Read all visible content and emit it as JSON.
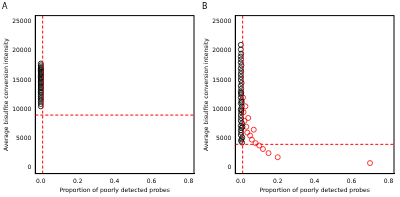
{
  "chart_data": [
    {
      "type": "scatter",
      "title": "A",
      "x_label": "Proportion of poorly detected probes",
      "y_label": "Average bisulfite conversion intensity",
      "xlim": [
        -0.03,
        0.83
      ],
      "xticks": [
        {
          "value": 0,
          "label": "0.0"
        },
        {
          "value": 0.2,
          "label": "0.2"
        },
        {
          "value": 0.4,
          "label": "0.4"
        },
        {
          "value": 0.6,
          "label": "0.6"
        },
        {
          "value": 0.8,
          "label": "0.8"
        }
      ],
      "ylim": [
        -1000,
        26000
      ],
      "yticks": [
        0,
        5000,
        10000,
        15000,
        20000,
        25000
      ],
      "grid": false,
      "reference_lines": {
        "x": 0.01,
        "y": 9000,
        "color": "#ff0000",
        "line_style": "dashed"
      },
      "series": [
        {
          "color": "#000000",
          "marker": "open_circle",
          "x": [
            0,
            0,
            0,
            0,
            0,
            0,
            0,
            0,
            0,
            0,
            0,
            0,
            0,
            0,
            0,
            0,
            0,
            0,
            0,
            0,
            0,
            0,
            0,
            0,
            0,
            0,
            0,
            0,
            0,
            0
          ],
          "values": [
            10500,
            10900,
            11300,
            11600,
            11900,
            12200,
            12500,
            12800,
            13000,
            13300,
            13600,
            13800,
            14000,
            14300,
            14500,
            14700,
            15000,
            15200,
            15400,
            15600,
            15800,
            16000,
            16200,
            16400,
            16600,
            16800,
            17000,
            17200,
            17500,
            17800
          ]
        }
      ]
    },
    {
      "type": "scatter",
      "title": "B",
      "x_label": "Proportion of poorly detected probes",
      "y_label": "Average bisulfite conversion intensity",
      "xlim": [
        -0.03,
        0.83
      ],
      "xticks": [
        {
          "value": 0,
          "label": "0.0"
        },
        {
          "value": 0.2,
          "label": "0.2"
        },
        {
          "value": 0.4,
          "label": "0.4"
        },
        {
          "value": 0.6,
          "label": "0.6"
        },
        {
          "value": 0.8,
          "label": "0.8"
        }
      ],
      "ylim": [
        -1000,
        26000
      ],
      "yticks": [
        0,
        5000,
        10000,
        15000,
        20000,
        25000
      ],
      "grid": false,
      "reference_lines": {
        "x": 0.01,
        "y": 4000,
        "color": "#ff0000",
        "line_style": "dashed"
      },
      "series": [
        {
          "color": "#000000",
          "marker": "open_circle",
          "x": [
            0,
            0,
            0.002,
            0,
            0.001,
            0,
            0.003,
            0,
            0.002,
            0,
            0.001,
            0,
            0.004,
            0,
            0.002,
            0,
            0.001,
            0,
            0.003,
            0,
            0.005,
            0,
            0.002,
            0,
            0.001,
            0,
            0.006,
            0,
            0.003,
            0,
            0.002,
            0,
            0.008,
            0.004,
            0.001,
            0.007,
            0.003,
            0.009,
            0.005,
            0.002
          ],
          "values": [
            21000,
            20200,
            19500,
            19000,
            18500,
            18000,
            17500,
            17000,
            16500,
            16000,
            15500,
            15000,
            14500,
            14000,
            13500,
            13000,
            12500,
            12000,
            11500,
            11000,
            10500,
            10000,
            9500,
            9000,
            8500,
            8000,
            7600,
            7200,
            6800,
            6400,
            6000,
            5600,
            5200,
            4900,
            4600,
            4300,
            9800,
            7000,
            11200,
            12800
          ]
        },
        {
          "color": "#ff0000",
          "marker": "open_circle",
          "x": [
            0.012,
            0.015,
            0.02,
            0.025,
            0.03,
            0.035,
            0.04,
            0.05,
            0.06,
            0.07,
            0.08,
            0.1,
            0.12,
            0.15,
            0.2,
            0.7
          ],
          "values": [
            12000,
            9500,
            8000,
            10500,
            7000,
            6000,
            8500,
            5500,
            4800,
            6500,
            4200,
            3800,
            3200,
            2500,
            1800,
            800
          ]
        }
      ]
    }
  ]
}
